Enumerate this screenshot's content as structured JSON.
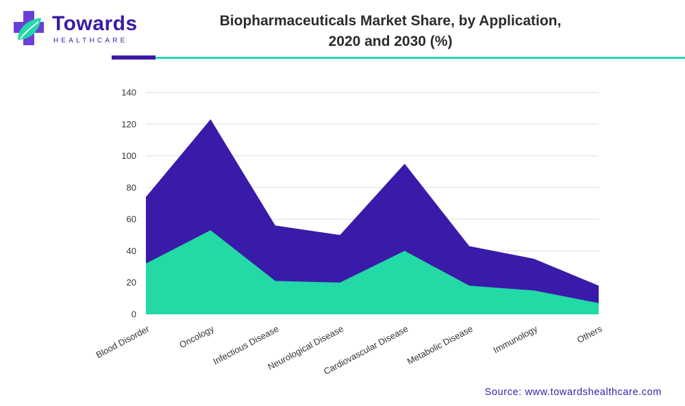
{
  "logo": {
    "brand": "Towards",
    "tagline": "HEALTHCARE",
    "icon": "medical-cross-leaf-icon"
  },
  "header": {
    "title_line1": "Biopharmaceuticals Market Share, by Application,",
    "title_line2": "2020 and 2030 (%)"
  },
  "source": "Source: www.towardshealthcare.com",
  "colors": {
    "accent_dark": "#3a1aa8",
    "accent_light": "#23d9a5"
  },
  "chart_data": {
    "type": "area",
    "title": "Biopharmaceuticals Market Share, by Application, 2020 and 2030 (%)",
    "stacked": true,
    "categories": [
      "Blood Disorder",
      "Oncology",
      "Infectious Disease",
      "Neurological Disease",
      "Cardiovascular Disease",
      "Metabolic Disease",
      "Immunology",
      "Others"
    ],
    "series": [
      {
        "color": "#23d9a5",
        "values": [
          32,
          53,
          21,
          20,
          40,
          18,
          15,
          7
        ]
      },
      {
        "color": "#3a1aa8",
        "values": [
          42,
          70,
          35,
          30,
          55,
          25,
          20,
          11
        ]
      }
    ],
    "ylim": [
      0,
      140
    ],
    "yticks": [
      0,
      20,
      40,
      60,
      80,
      100,
      120,
      140
    ],
    "grid": true,
    "legend": "none",
    "xlabel": "",
    "ylabel": ""
  }
}
